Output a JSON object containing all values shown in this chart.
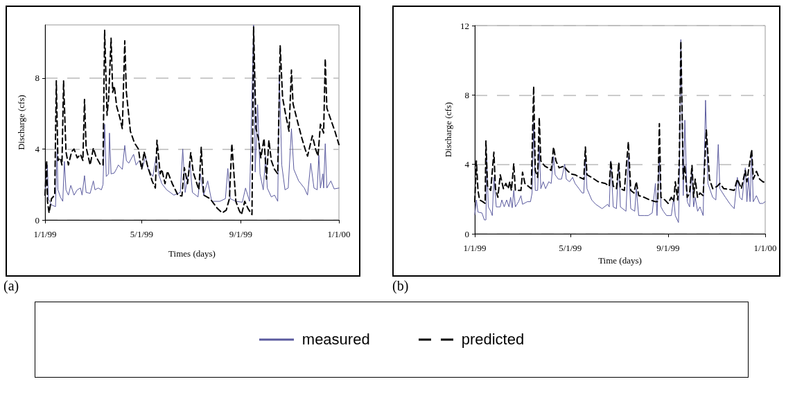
{
  "chart_data": [
    {
      "type": "line",
      "xlabel": "Times (days)",
      "ylabel": "Discharge (cfs)",
      "annotations": [
        "(a)"
      ],
      "xlim": [
        "1999-01-01",
        "2000-01-01"
      ],
      "xticks": [
        {
          "value": "1999-01-01",
          "label": "1/1/99"
        },
        {
          "value": "1999-05-01",
          "label": "5/1/99"
        },
        {
          "value": "1999-09-01",
          "label": "9/1/99"
        },
        {
          "value": "2000-01-01",
          "label": "1/1/00"
        }
      ],
      "ylim": [
        0,
        11
      ],
      "yticks": [
        0,
        4,
        8
      ],
      "grid": "y",
      "legend": "bottom",
      "marker": "none",
      "series": [
        {
          "name": "measured",
          "color": "#5a5a9e",
          "line_style": "solid",
          "x": [
            "1999-01-01",
            "1999-01-04",
            "1999-01-05",
            "1999-01-09",
            "1999-01-14",
            "1999-01-16",
            "1999-01-17",
            "1999-01-20",
            "1999-01-23",
            "1999-01-25",
            "1999-01-27",
            "1999-01-30",
            "1999-02-02",
            "1999-02-06",
            "1999-02-10",
            "1999-02-14",
            "1999-02-16",
            "1999-02-19",
            "1999-02-21",
            "1999-02-26",
            "1999-03-02",
            "1999-03-04",
            "1999-03-08",
            "1999-03-12",
            "1999-03-14",
            "1999-03-16",
            "1999-03-18",
            "1999-03-21",
            "1999-03-22",
            "1999-03-24",
            "1999-03-28",
            "1999-03-31",
            "1999-04-02",
            "1999-04-07",
            "1999-04-10",
            "1999-04-12",
            "1999-04-15",
            "1999-04-21",
            "1999-04-24",
            "1999-04-28",
            "1999-05-02",
            "1999-05-06",
            "1999-05-09",
            "1999-05-15",
            "1999-05-19",
            "1999-05-22",
            "1999-05-26",
            "1999-06-01",
            "1999-06-10",
            "1999-06-18",
            "1999-06-21",
            "1999-06-24",
            "1999-06-30",
            "1999-07-03",
            "1999-07-10",
            "1999-07-13",
            "1999-07-17",
            "1999-07-22",
            "1999-07-27",
            "1999-08-06",
            "1999-08-13",
            "1999-08-16",
            "1999-08-19",
            "1999-08-26",
            "1999-09-03",
            "1999-09-07",
            "1999-09-12",
            "1999-09-17",
            "1999-09-19",
            "1999-09-22",
            "1999-09-25",
            "1999-09-29",
            "1999-10-02",
            "1999-10-04",
            "1999-10-09",
            "1999-10-13",
            "1999-10-17",
            "1999-10-19",
            "1999-10-22",
            "1999-10-26",
            "1999-10-30",
            "1999-11-03",
            "1999-11-06",
            "1999-11-12",
            "1999-11-19",
            "1999-11-23",
            "1999-11-27",
            "1999-12-01",
            "1999-12-05",
            "1999-12-07",
            "1999-12-09",
            "1999-12-12",
            "1999-12-13",
            "1999-12-15",
            "1999-12-17",
            "1999-12-22",
            "1999-12-26",
            "2000-01-01"
          ],
          "values": [
            1.4,
            3.1,
            1.2,
            0.85,
            0.75,
            4.0,
            1.7,
            1.3,
            1.05,
            3.3,
            1.7,
            1.4,
            1.95,
            1.4,
            1.7,
            1.8,
            1.4,
            2.5,
            1.55,
            1.5,
            2.2,
            1.7,
            1.8,
            1.7,
            2.0,
            5.4,
            2.45,
            2.6,
            4.9,
            2.6,
            2.65,
            2.9,
            3.1,
            2.85,
            4.2,
            3.35,
            3.2,
            3.7,
            3.1,
            3.35,
            2.95,
            3.6,
            2.85,
            2.45,
            3.6,
            2.6,
            2.05,
            1.7,
            1.4,
            1.55,
            4.0,
            1.55,
            3.2,
            1.55,
            1.3,
            2.6,
            1.4,
            2.2,
            1.05,
            1.05,
            1.2,
            2.9,
            1.2,
            1.05,
            1.0,
            1.8,
            1.05,
            11.0,
            2.7,
            6.5,
            2.6,
            1.7,
            3.6,
            1.8,
            1.3,
            1.4,
            1.05,
            8.2,
            3.1,
            1.7,
            1.8,
            5.15,
            2.85,
            2.2,
            1.8,
            1.4,
            3.2,
            1.8,
            1.7,
            3.65,
            1.8,
            2.6,
            1.8,
            4.3,
            1.8,
            2.2,
            1.75,
            1.8
          ]
        },
        {
          "name": "predicted",
          "color": "#000000",
          "line_style": "dashed",
          "x": [
            "1999-01-01",
            "1999-01-03",
            "1999-01-04",
            "1999-01-06",
            "1999-01-09",
            "1999-01-13",
            "1999-01-15",
            "1999-01-17",
            "1999-01-20",
            "1999-01-22",
            "1999-01-24",
            "1999-01-27",
            "1999-01-30",
            "1999-02-03",
            "1999-02-06",
            "1999-02-10",
            "1999-02-14",
            "1999-02-17",
            "1999-02-19",
            "1999-02-21",
            "1999-02-26",
            "1999-03-02",
            "1999-03-05",
            "1999-03-11",
            "1999-03-14",
            "1999-03-16",
            "1999-03-19",
            "1999-03-21",
            "1999-03-24",
            "1999-03-26",
            "1999-03-28",
            "1999-03-31",
            "1999-04-04",
            "1999-04-07",
            "1999-04-10",
            "1999-04-12",
            "1999-04-17",
            "1999-04-22",
            "1999-04-27",
            "1999-04-29",
            "1999-05-01",
            "1999-05-04",
            "1999-05-08",
            "1999-05-14",
            "1999-05-18",
            "1999-05-20",
            "1999-05-24",
            "1999-05-26",
            "1999-05-30",
            "1999-06-02",
            "1999-06-08",
            "1999-06-15",
            "1999-06-20",
            "1999-06-23",
            "1999-06-27",
            "1999-07-01",
            "1999-07-04",
            "1999-07-11",
            "1999-07-14",
            "1999-07-17",
            "1999-07-25",
            "1999-08-03",
            "1999-08-09",
            "1999-08-14",
            "1999-08-18",
            "1999-08-21",
            "1999-08-26",
            "1999-08-30",
            "1999-09-02",
            "1999-09-06",
            "1999-09-10",
            "1999-09-15",
            "1999-09-17",
            "1999-09-20",
            "1999-09-23",
            "1999-09-26",
            "1999-09-30",
            "1999-10-03",
            "1999-10-06",
            "1999-10-09",
            "1999-10-13",
            "1999-10-17",
            "1999-10-20",
            "1999-10-23",
            "1999-10-27",
            "1999-10-31",
            "1999-11-03",
            "1999-11-05",
            "1999-11-10",
            "1999-11-16",
            "1999-11-20",
            "1999-11-23",
            "1999-11-29",
            "1999-12-03",
            "1999-12-06",
            "1999-12-09",
            "1999-12-13",
            "1999-12-15",
            "1999-12-17",
            "1999-12-22",
            "1999-12-27",
            "2000-01-01"
          ],
          "values": [
            1.4,
            3.35,
            1.05,
            0.4,
            1.2,
            1.4,
            7.85,
            3.35,
            3.5,
            3.1,
            7.85,
            3.85,
            3.1,
            3.85,
            4.0,
            3.5,
            3.7,
            3.35,
            6.8,
            4.1,
            3.1,
            4.05,
            3.6,
            3.1,
            3.1,
            10.7,
            5.9,
            6.9,
            10.25,
            7.2,
            7.55,
            6.4,
            5.75,
            5.15,
            10.1,
            7.2,
            5.0,
            4.35,
            4.0,
            3.35,
            2.85,
            3.85,
            3.1,
            2.2,
            1.8,
            4.5,
            2.6,
            2.85,
            2.05,
            2.75,
            2.05,
            1.4,
            1.35,
            2.95,
            2.05,
            3.8,
            2.7,
            1.7,
            4.1,
            1.4,
            1.2,
            0.65,
            0.4,
            0.55,
            1.2,
            4.3,
            1.05,
            0.55,
            0.3,
            1.05,
            0.65,
            0.3,
            10.9,
            5.15,
            4.6,
            3.5,
            4.6,
            2.3,
            4.5,
            3.35,
            2.85,
            2.6,
            9.85,
            6.9,
            5.9,
            5.0,
            8.45,
            6.55,
            5.65,
            4.6,
            4.0,
            3.6,
            4.75,
            4.0,
            3.6,
            5.4,
            4.9,
            9.1,
            6.3,
            5.65,
            5.0,
            4.25
          ]
        }
      ]
    },
    {
      "type": "line",
      "xlabel": "Time (days)",
      "ylabel": "Discharge (cfs)",
      "annotations": [
        "(b)"
      ],
      "xlim": [
        "1999-01-01",
        "2000-01-01"
      ],
      "xticks": [
        {
          "value": "1999-01-01",
          "label": "1/1/99"
        },
        {
          "value": "1999-05-01",
          "label": "5/1/99"
        },
        {
          "value": "1999-09-01",
          "label": "9/1/99"
        },
        {
          "value": "2000-01-01",
          "label": "1/1/00"
        }
      ],
      "ylim": [
        0,
        12
      ],
      "yticks": [
        0,
        4,
        8,
        12
      ],
      "grid": "y",
      "marker": "none",
      "series": [
        {
          "color": "#5a5a9e",
          "line_style": "solid",
          "x": [
            "1999-01-01",
            "1999-01-03",
            "1999-01-05",
            "1999-01-10",
            "1999-01-13",
            "1999-01-15",
            "1999-01-16",
            "1999-01-18",
            "1999-01-21",
            "1999-01-23",
            "1999-01-25",
            "1999-01-28",
            "1999-02-02",
            "1999-02-04",
            "1999-02-07",
            "1999-02-10",
            "1999-02-13",
            "1999-02-15",
            "1999-02-17",
            "1999-02-19",
            "1999-02-21",
            "1999-02-25",
            "1999-02-28",
            "1999-03-02",
            "1999-03-08",
            "1999-03-12",
            "1999-03-14",
            "1999-03-16",
            "1999-03-18",
            "1999-03-21",
            "1999-03-23",
            "1999-03-25",
            "1999-03-28",
            "1999-03-31",
            "1999-04-04",
            "1999-04-07",
            "1999-04-10",
            "1999-04-12",
            "1999-04-16",
            "1999-04-20",
            "1999-04-24",
            "1999-04-26",
            "1999-04-30",
            "1999-05-04",
            "1999-05-07",
            "1999-05-12",
            "1999-05-16",
            "1999-05-18",
            "1999-05-20",
            "1999-05-22",
            "1999-05-28",
            "1999-06-02",
            "1999-06-10",
            "1999-06-17",
            "1999-06-19",
            "1999-06-21",
            "1999-06-24",
            "1999-06-28",
            "1999-07-01",
            "1999-07-03",
            "1999-07-10",
            "1999-07-13",
            "1999-07-16",
            "1999-07-21",
            "1999-07-23",
            "1999-07-26",
            "1999-08-02",
            "1999-08-07",
            "1999-08-12",
            "1999-08-16",
            "1999-08-18",
            "1999-08-21",
            "1999-08-23",
            "1999-08-26",
            "1999-08-30",
            "1999-09-05",
            "1999-09-08",
            "1999-09-10",
            "1999-09-14",
            "1999-09-15",
            "1999-09-17",
            "1999-09-20",
            "1999-09-22",
            "1999-09-25",
            "1999-09-28",
            "1999-10-01",
            "1999-10-03",
            "1999-10-05",
            "1999-10-08",
            "1999-10-11",
            "1999-10-15",
            "1999-10-18",
            "1999-10-21",
            "1999-10-27",
            "1999-10-31",
            "1999-11-03",
            "1999-11-05",
            "1999-11-12",
            "1999-11-18",
            "1999-11-23",
            "1999-11-27",
            "1999-11-30",
            "1999-12-03",
            "1999-12-07",
            "1999-12-09",
            "1999-12-11",
            "1999-12-13",
            "1999-12-15",
            "1999-12-17",
            "1999-12-21",
            "1999-12-25",
            "1999-12-29",
            "2000-01-01"
          ],
          "values": [
            1.1,
            1.95,
            1.25,
            1.2,
            0.8,
            0.8,
            4.3,
            1.55,
            1.3,
            1.05,
            3.25,
            1.55,
            1.55,
            1.95,
            1.55,
            1.95,
            1.55,
            2.1,
            1.5,
            2.5,
            1.55,
            1.85,
            2.2,
            1.7,
            1.85,
            1.85,
            2.35,
            6.4,
            2.5,
            2.5,
            5.0,
            2.6,
            3.0,
            2.6,
            3.0,
            2.9,
            4.45,
            3.4,
            3.15,
            3.15,
            4.0,
            3.15,
            3.0,
            3.25,
            2.9,
            2.6,
            2.35,
            2.35,
            4.45,
            2.6,
            1.95,
            1.7,
            1.45,
            1.7,
            1.55,
            4.2,
            1.55,
            1.45,
            4.1,
            1.55,
            1.3,
            4.45,
            1.45,
            1.3,
            2.6,
            1.05,
            1.05,
            1.05,
            1.2,
            2.9,
            1.05,
            4.45,
            1.55,
            1.3,
            1.05,
            1.05,
            2.1,
            1.05,
            0.65,
            2.6,
            11.2,
            2.2,
            6.55,
            1.85,
            1.55,
            3.8,
            1.55,
            2.1,
            1.3,
            1.55,
            1.05,
            7.7,
            2.9,
            2.1,
            1.95,
            5.15,
            2.6,
            2.1,
            1.7,
            1.45,
            3.25,
            2.1,
            1.95,
            3.8,
            1.85,
            3.25,
            1.85,
            4.7,
            1.85,
            2.2,
            1.75,
            1.75,
            1.85
          ]
        },
        {
          "color": "#000000",
          "line_style": "dashed",
          "x": [
            "1999-01-01",
            "1999-01-03",
            "1999-01-05",
            "1999-01-07",
            "1999-01-11",
            "1999-01-14",
            "1999-01-15",
            "1999-01-17",
            "1999-01-21",
            "1999-01-25",
            "1999-01-27",
            "1999-01-30",
            "1999-02-02",
            "1999-02-06",
            "1999-02-09",
            "1999-02-12",
            "1999-02-14",
            "1999-02-16",
            "1999-02-19",
            "1999-02-21",
            "1999-02-25",
            "1999-02-28",
            "1999-03-02",
            "1999-03-05",
            "1999-03-09",
            "1999-03-13",
            "1999-03-16",
            "1999-03-18",
            "1999-03-21",
            "1999-03-23",
            "1999-03-25",
            "1999-03-30",
            "1999-04-03",
            "1999-04-07",
            "1999-04-10",
            "1999-04-13",
            "1999-04-17",
            "1999-04-23",
            "1999-04-27",
            "1999-05-02",
            "1999-05-07",
            "1999-05-13",
            "1999-05-18",
            "1999-05-20",
            "1999-05-22",
            "1999-05-28",
            "1999-06-05",
            "1999-06-14",
            "1999-06-19",
            "1999-06-21",
            "1999-06-24",
            "1999-06-28",
            "1999-07-01",
            "1999-07-03",
            "1999-07-08",
            "1999-07-13",
            "1999-07-16",
            "1999-07-20",
            "1999-07-23",
            "1999-07-26",
            "1999-08-02",
            "1999-08-09",
            "1999-08-16",
            "1999-08-19",
            "1999-08-21",
            "1999-08-23",
            "1999-08-28",
            "1999-09-01",
            "1999-09-05",
            "1999-09-08",
            "1999-09-10",
            "1999-09-13",
            "1999-09-15",
            "1999-09-17",
            "1999-09-20",
            "1999-09-22",
            "1999-09-25",
            "1999-09-28",
            "1999-10-01",
            "1999-10-03",
            "1999-10-05",
            "1999-10-08",
            "1999-10-11",
            "1999-10-15",
            "1999-10-19",
            "1999-10-23",
            "1999-10-27",
            "1999-11-02",
            "1999-11-05",
            "1999-11-10",
            "1999-11-18",
            "1999-11-23",
            "1999-11-27",
            "1999-12-02",
            "1999-12-07",
            "1999-12-09",
            "1999-12-11",
            "1999-12-15",
            "1999-12-17",
            "1999-12-21",
            "1999-12-25",
            "1999-12-29",
            "2000-01-01"
          ],
          "values": [
            1.85,
            4.2,
            2.5,
            1.95,
            1.85,
            1.75,
            5.35,
            2.75,
            2.5,
            4.7,
            2.6,
            2.1,
            3.4,
            2.6,
            2.9,
            2.6,
            3.0,
            2.5,
            4.05,
            2.5,
            2.5,
            2.5,
            3.55,
            2.9,
            2.75,
            2.6,
            8.5,
            3.65,
            3.25,
            6.7,
            4.2,
            3.9,
            3.8,
            3.65,
            5.0,
            4.2,
            3.8,
            3.9,
            3.65,
            3.45,
            3.4,
            3.25,
            3.15,
            5.0,
            3.4,
            3.25,
            3.0,
            2.9,
            2.75,
            4.2,
            2.75,
            2.6,
            4.1,
            2.6,
            2.5,
            5.3,
            2.5,
            2.35,
            3.0,
            2.2,
            2.1,
            1.95,
            1.85,
            1.85,
            6.35,
            2.1,
            1.95,
            1.75,
            2.1,
            1.85,
            3.0,
            1.95,
            4.2,
            11.1,
            3.15,
            3.95,
            2.1,
            2.35,
            3.95,
            2.1,
            3.15,
            2.1,
            2.35,
            2.2,
            6.0,
            3.15,
            2.6,
            2.75,
            2.9,
            2.6,
            2.55,
            2.5,
            3.15,
            2.6,
            3.65,
            3.0,
            3.65,
            4.85,
            3.15,
            3.6,
            3.15,
            3.0,
            2.95
          ]
        }
      ]
    }
  ]
}
